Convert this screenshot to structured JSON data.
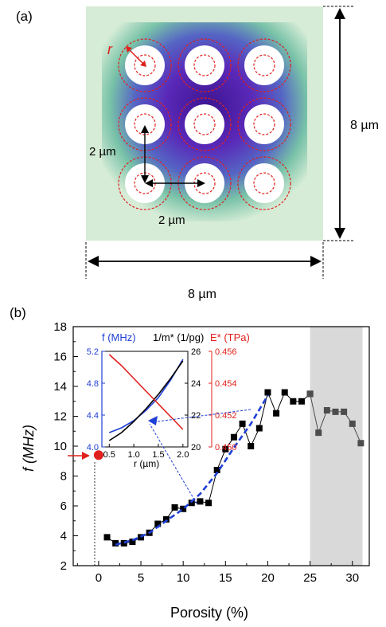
{
  "panel_a": {
    "label": "(a)",
    "radius_label": "r",
    "pitch_x_label": "2 µm",
    "pitch_y_label": "2 µm",
    "width_label": "8 µm",
    "height_label": "8 µm",
    "colors": {
      "background": "#d6ecd6",
      "hole_fill": "#ffffff",
      "dash_circle": "#e0201c",
      "gradient_core": "#4d1aa3"
    }
  },
  "chart_data": [
    {
      "type": "scatter",
      "panel": "(b)",
      "xlabel": "Porosity (%)",
      "ylabel": "f (MHz)",
      "xlim": [
        -3,
        32
      ],
      "ylim": [
        2,
        18
      ],
      "xticks": [
        0,
        5,
        10,
        15,
        20,
        25,
        30
      ],
      "yticks": [
        2,
        4,
        6,
        8,
        10,
        12,
        14,
        16,
        18
      ],
      "shaded_region": [
        25,
        31.2
      ],
      "series": [
        {
          "kind": "marker",
          "color": "#e0201c",
          "points": [
            [
              0,
              9.4
            ]
          ]
        },
        {
          "kind": "black-squares",
          "color": "#000000",
          "points": [
            [
              1,
              3.9
            ],
            [
              2,
              3.5
            ],
            [
              3,
              3.5
            ],
            [
              4,
              3.6
            ],
            [
              5,
              3.9
            ],
            [
              6,
              4.2
            ],
            [
              7,
              4.8
            ],
            [
              8,
              5.1
            ],
            [
              9,
              5.9
            ],
            [
              10,
              5.8
            ],
            [
              11,
              6.2
            ],
            [
              12,
              6.3
            ],
            [
              13,
              6.2
            ],
            [
              14,
              8.4
            ],
            [
              15,
              9.8
            ],
            [
              16,
              10.6
            ],
            [
              17,
              11.5
            ],
            [
              18,
              10.0
            ],
            [
              19,
              11.2
            ],
            [
              20,
              13.6
            ],
            [
              21,
              12.2
            ],
            [
              22,
              13.6
            ],
            [
              23,
              13.0
            ],
            [
              24,
              13.0
            ],
            [
              25,
              13.5
            ]
          ]
        },
        {
          "kind": "gray-squares",
          "color": "#4d4d4d",
          "points": [
            [
              25,
              13.5
            ],
            [
              26,
              10.9
            ],
            [
              27,
              12.4
            ],
            [
              28,
              12.3
            ],
            [
              29,
              12.3
            ],
            [
              30,
              11.5
            ],
            [
              31,
              10.2
            ]
          ]
        },
        {
          "kind": "blue-dashed-fit",
          "color": "#1f3fd6",
          "points": [
            [
              2,
              3.4
            ],
            [
              4,
              3.7
            ],
            [
              6,
              4.2
            ],
            [
              8,
              5.0
            ],
            [
              10,
              5.8
            ],
            [
              12,
              6.8
            ],
            [
              14,
              8.2
            ],
            [
              16,
              9.9
            ],
            [
              18,
              11.5
            ],
            [
              20,
              13.4
            ]
          ]
        }
      ]
    },
    {
      "type": "line",
      "panel": "inset",
      "xlabel": "r (µm)",
      "xlim": [
        0.35,
        2.1
      ],
      "xticks": [
        0.5,
        1.0,
        1.5,
        2.0
      ],
      "axes": {
        "f": {
          "label": "f (MHz)",
          "color": "#1f3fd6",
          "ylim": [
            4.0,
            5.2
          ],
          "yticks": [
            "4.0",
            "4.4",
            "4.8",
            "5.2"
          ]
        },
        "inv_m": {
          "label": "1/m* (1/pg)",
          "color": "#000000",
          "ylim": [
            20,
            26
          ],
          "yticks": [
            "20",
            "22",
            "24",
            "26"
          ]
        },
        "E": {
          "label": "E* (TPa)",
          "color": "#e0201c",
          "ylim": [
            0.45,
            0.456
          ],
          "yticks": [
            "0.450",
            "0.452",
            "0.454",
            "0.456"
          ]
        }
      },
      "series": [
        {
          "name": "f (MHz)",
          "color": "#1f3fd6",
          "axis": "f",
          "x": [
            0.5,
            0.75,
            1.0,
            1.25,
            1.5,
            1.75,
            2.0
          ],
          "y": [
            4.18,
            4.24,
            4.33,
            4.46,
            4.62,
            4.84,
            5.1
          ]
        },
        {
          "name": "1/m* (1/pg)",
          "color": "#000000",
          "axis": "inv_m",
          "x": [
            0.5,
            0.75,
            1.0,
            1.25,
            1.5,
            1.75,
            2.0
          ],
          "y": [
            20.4,
            20.9,
            21.6,
            22.4,
            23.3,
            24.3,
            25.4
          ]
        },
        {
          "name": "E* (TPa)",
          "color": "#e0201c",
          "axis": "E",
          "x": [
            0.5,
            0.75,
            1.0,
            1.25,
            1.5,
            1.75,
            2.0
          ],
          "y": [
            0.4558,
            0.4551,
            0.4543,
            0.4535,
            0.4527,
            0.4519,
            0.4511
          ]
        }
      ]
    }
  ]
}
